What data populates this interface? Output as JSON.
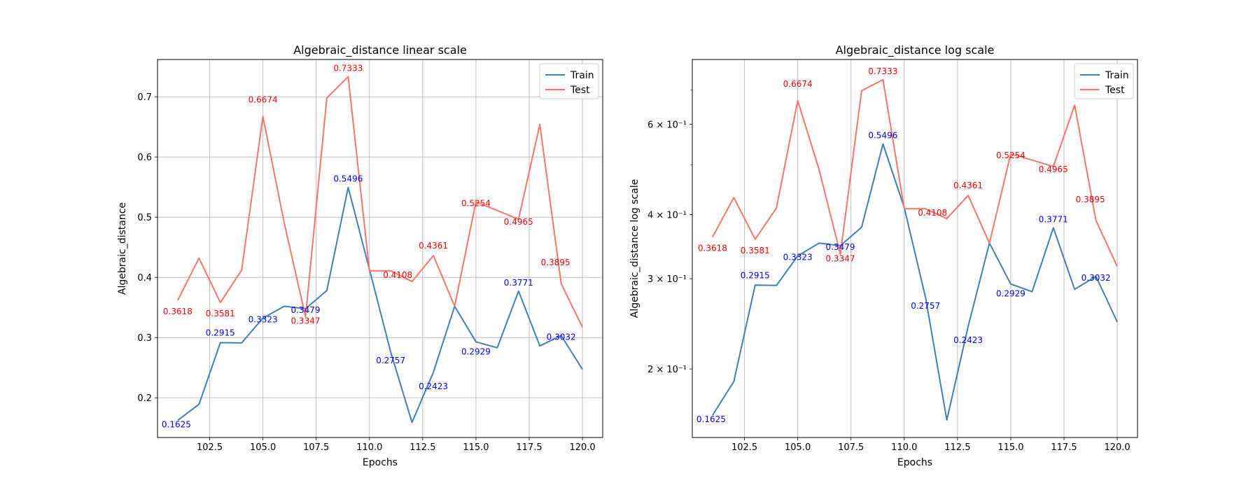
{
  "chart_data": [
    {
      "type": "line",
      "title": "Algebraic_distance linear scale",
      "xlabel": "Epochs",
      "ylabel": "Algebraic_distance",
      "yscale": "linear",
      "xlim": [
        100.05,
        120.95
      ],
      "ylim": [
        0.1339,
        0.7619
      ],
      "xticks": [
        102.5,
        105.0,
        107.5,
        110.0,
        112.5,
        115.0,
        117.5,
        120.0
      ],
      "xtick_labels": [
        "102.5",
        "105.0",
        "107.5",
        "110.0",
        "112.5",
        "115.0",
        "117.5",
        "120.0"
      ],
      "yticks": [
        0.2,
        0.3,
        0.4,
        0.5,
        0.6,
        0.7
      ],
      "ytick_labels": [
        "0.2",
        "0.3",
        "0.4",
        "0.5",
        "0.6",
        "0.7"
      ],
      "grid": true,
      "legend": "top-right",
      "x": [
        101,
        102,
        103,
        104,
        105,
        106,
        107,
        108,
        109,
        110,
        111,
        112,
        113,
        114,
        115,
        116,
        117,
        118,
        119,
        120
      ],
      "series": [
        {
          "name": "Train",
          "color": "#3e7fb8",
          "values": [
            0.1625,
            0.189,
            0.2915,
            0.291,
            0.3323,
            0.352,
            0.3479,
            0.378,
            0.5496,
            0.413,
            0.2757,
            0.159,
            0.2423,
            0.352,
            0.2929,
            0.283,
            0.3771,
            0.286,
            0.3032,
            0.247
          ]
        },
        {
          "name": "Test",
          "color": "#f8756b",
          "values": [
            0.3618,
            0.432,
            0.3581,
            0.412,
            0.6674,
            0.49,
            0.3347,
            0.698,
            0.7333,
            0.4108,
            0.4108,
            0.393,
            0.4361,
            0.352,
            0.5254,
            0.511,
            0.4965,
            0.654,
            0.3895,
            0.317
          ]
        }
      ],
      "annotations": [
        {
          "series": "Train",
          "x": 101,
          "text": "0.1625"
        },
        {
          "series": "Train",
          "x": 103,
          "text": "0.2915"
        },
        {
          "series": "Train",
          "x": 105,
          "text": "0.3323"
        },
        {
          "series": "Train",
          "x": 107,
          "text": "0.3479"
        },
        {
          "series": "Train",
          "x": 109,
          "text": "0.5496"
        },
        {
          "series": "Train",
          "x": 111,
          "text": "0.2757"
        },
        {
          "series": "Train",
          "x": 113,
          "text": "0.2423"
        },
        {
          "series": "Train",
          "x": 115,
          "text": "0.2929"
        },
        {
          "series": "Train",
          "x": 117,
          "text": "0.3771"
        },
        {
          "series": "Train",
          "x": 119,
          "text": "0.3032"
        },
        {
          "series": "Test",
          "x": 101,
          "text": "0.3618"
        },
        {
          "series": "Test",
          "x": 103,
          "text": "0.3581"
        },
        {
          "series": "Test",
          "x": 105,
          "text": "0.6674"
        },
        {
          "series": "Test",
          "x": 107,
          "text": "0.3347"
        },
        {
          "series": "Test",
          "x": 109,
          "text": "0.7333"
        },
        {
          "series": "Test",
          "x": 111,
          "text": "0.4108"
        },
        {
          "series": "Test",
          "x": 113,
          "text": "0.4361"
        },
        {
          "series": "Test",
          "x": 115,
          "text": "0.5254"
        },
        {
          "series": "Test",
          "x": 117,
          "text": "0.4965"
        },
        {
          "series": "Test",
          "x": 119,
          "text": "0.3895"
        }
      ]
    },
    {
      "type": "line",
      "title": "Algebraic_distance log scale",
      "xlabel": "Epochs",
      "ylabel": "Algebraic_distance log scale",
      "yscale": "log",
      "xlim": [
        100.05,
        120.95
      ],
      "ylim": [
        0.147,
        0.803
      ],
      "xticks": [
        102.5,
        105.0,
        107.5,
        110.0,
        112.5,
        115.0,
        117.5,
        120.0
      ],
      "xtick_labels": [
        "102.5",
        "105.0",
        "107.5",
        "110.0",
        "112.5",
        "115.0",
        "117.5",
        "120.0"
      ],
      "yticks": [
        0.2,
        0.3,
        0.4,
        0.6
      ],
      "ytick_labels": [
        "2 × 10⁻¹",
        "3 × 10⁻¹",
        "4 × 10⁻¹",
        "6 × 10⁻¹"
      ],
      "grid": true,
      "legend": "top-right",
      "x": [
        101,
        102,
        103,
        104,
        105,
        106,
        107,
        108,
        109,
        110,
        111,
        112,
        113,
        114,
        115,
        116,
        117,
        118,
        119,
        120
      ],
      "series": [
        {
          "name": "Train",
          "color": "#3e7fb8",
          "values": [
            0.1625,
            0.189,
            0.2915,
            0.291,
            0.3323,
            0.352,
            0.3479,
            0.378,
            0.5496,
            0.413,
            0.2757,
            0.159,
            0.2423,
            0.352,
            0.2929,
            0.283,
            0.3771,
            0.286,
            0.3032,
            0.247
          ]
        },
        {
          "name": "Test",
          "color": "#f8756b",
          "values": [
            0.3618,
            0.432,
            0.3581,
            0.412,
            0.6674,
            0.49,
            0.3347,
            0.698,
            0.7333,
            0.4108,
            0.4108,
            0.393,
            0.4361,
            0.352,
            0.5254,
            0.511,
            0.4965,
            0.654,
            0.3895,
            0.317
          ]
        }
      ],
      "annotations": [
        {
          "series": "Train",
          "x": 101,
          "text": "0.1625"
        },
        {
          "series": "Train",
          "x": 103,
          "text": "0.2915"
        },
        {
          "series": "Train",
          "x": 105,
          "text": "0.3323"
        },
        {
          "series": "Train",
          "x": 107,
          "text": "0.3479"
        },
        {
          "series": "Train",
          "x": 109,
          "text": "0.5496"
        },
        {
          "series": "Train",
          "x": 111,
          "text": "0.2757"
        },
        {
          "series": "Train",
          "x": 113,
          "text": "0.2423"
        },
        {
          "series": "Train",
          "x": 115,
          "text": "0.2929"
        },
        {
          "series": "Train",
          "x": 117,
          "text": "0.3771"
        },
        {
          "series": "Train",
          "x": 119,
          "text": "0.3032"
        },
        {
          "series": "Test",
          "x": 101,
          "text": "0.3618"
        },
        {
          "series": "Test",
          "x": 103,
          "text": "0.3581"
        },
        {
          "series": "Test",
          "x": 105,
          "text": "0.6674"
        },
        {
          "series": "Test",
          "x": 107,
          "text": "0.3347"
        },
        {
          "series": "Test",
          "x": 109,
          "text": "0.7333"
        },
        {
          "series": "Test",
          "x": 111,
          "text": "0.4108"
        },
        {
          "series": "Test",
          "x": 113,
          "text": "0.4361"
        },
        {
          "series": "Test",
          "x": 115,
          "text": "0.5254"
        },
        {
          "series": "Test",
          "x": 117,
          "text": "0.4965"
        },
        {
          "series": "Test",
          "x": 119,
          "text": "0.3895"
        }
      ]
    }
  ]
}
